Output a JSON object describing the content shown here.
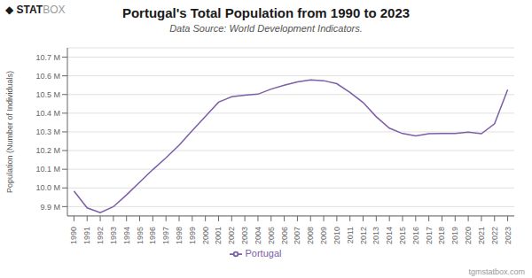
{
  "chart_data": {
    "type": "line",
    "title": "Portugal's Total Population from 1990 to 2023",
    "subtitle": "Data Source: World Development Indicators.",
    "y_label": "Population (Number of Individuals)",
    "annotations": [
      "◆",
      "STAT",
      "BOX",
      "tgmstatbox.com"
    ],
    "x": [
      1990,
      1991,
      1992,
      1993,
      1994,
      1995,
      1996,
      1997,
      1998,
      1999,
      2000,
      2001,
      2002,
      2003,
      2004,
      2005,
      2006,
      2007,
      2008,
      2009,
      2010,
      2011,
      2012,
      2013,
      2014,
      2015,
      2016,
      2017,
      2018,
      2019,
      2020,
      2021,
      2022,
      2023
    ],
    "series": [
      {
        "name": "Portugal",
        "color": "#7B5EA7",
        "values": [
          9983349,
          9893312,
          9867147,
          9899498,
          9962852,
          10031000,
          10098000,
          10161000,
          10229000,
          10307000,
          10383000,
          10459000,
          10488000,
          10496000,
          10502000,
          10529000,
          10550000,
          10568000,
          10578000,
          10574000,
          10558000,
          10511000,
          10457000,
          10381000,
          10320000,
          10291000,
          10279000,
          10290000,
          10291000,
          10291000,
          10298000,
          10290000,
          10343000,
          10526000
        ]
      }
    ],
    "xlim": [
      1989.5,
      2023.5
    ],
    "xticks": [
      1990,
      1991,
      1992,
      1993,
      1994,
      1995,
      1996,
      1997,
      1998,
      1999,
      2000,
      2001,
      2002,
      2003,
      2004,
      2005,
      2006,
      2007,
      2008,
      2009,
      2010,
      2011,
      2012,
      2013,
      2014,
      2015,
      2016,
      2017,
      2018,
      2019,
      2020,
      2021,
      2022,
      2023
    ],
    "ylim": [
      9850000,
      10750000
    ],
    "yticks": [
      {
        "value": 9900000,
        "label": "9.9 M"
      },
      {
        "value": 10000000,
        "label": "10.0 M"
      },
      {
        "value": 10100000,
        "label": "10.1 M"
      },
      {
        "value": 10200000,
        "label": "10.2 M"
      },
      {
        "value": 10300000,
        "label": "10.3 M"
      },
      {
        "value": 10400000,
        "label": "10.4 M"
      },
      {
        "value": 10500000,
        "label": "10.5 M"
      },
      {
        "value": 10600000,
        "label": "10.6 M"
      },
      {
        "value": 10700000,
        "label": "10.7 M"
      }
    ],
    "grid": true,
    "legend": "bottom"
  }
}
